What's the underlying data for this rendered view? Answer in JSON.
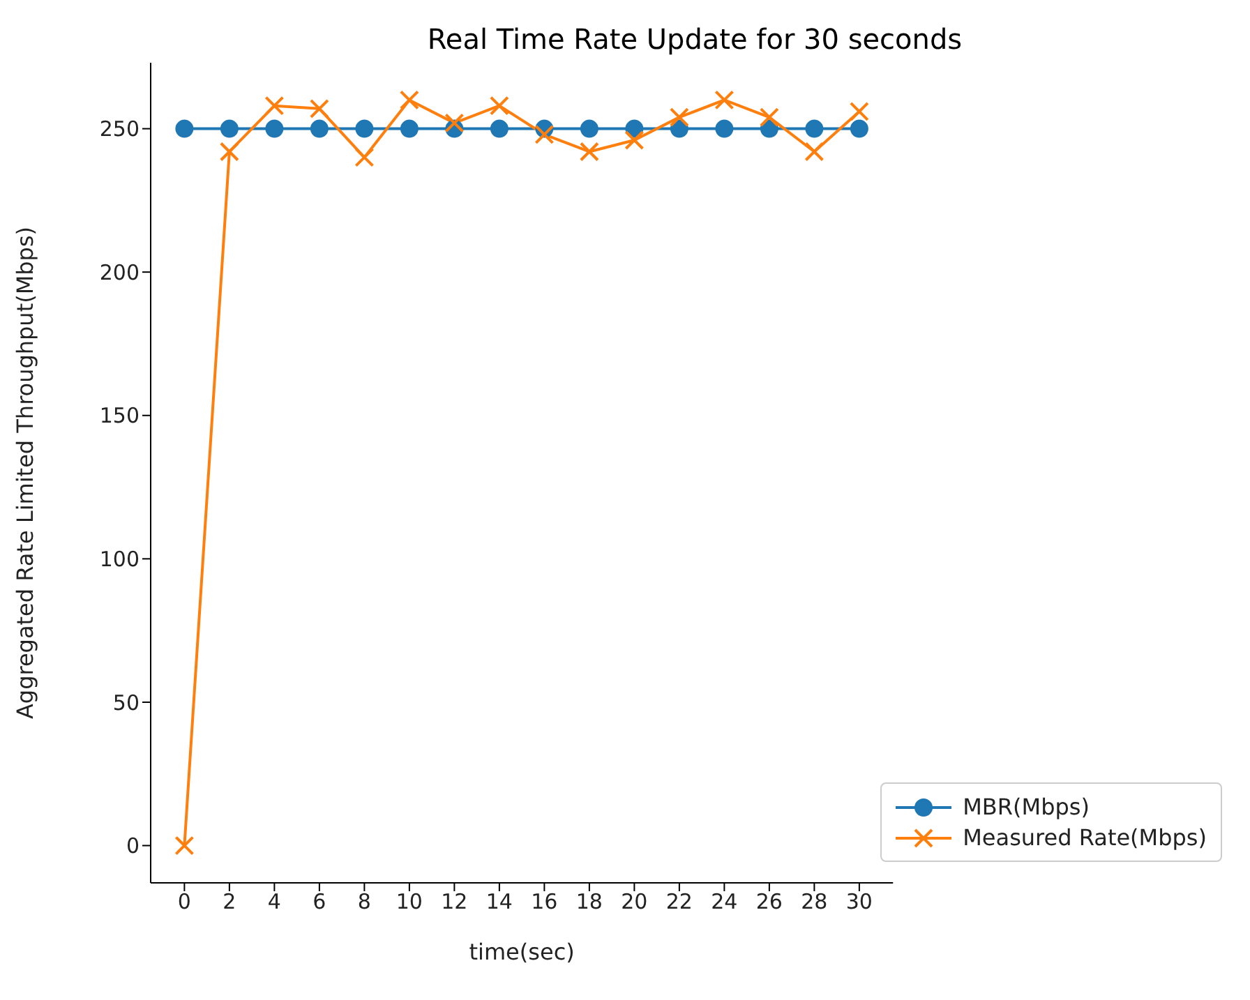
{
  "chart_data": {
    "type": "line",
    "title": "Real Time Rate Update for 30 seconds",
    "xlabel": "time(sec)",
    "ylabel": "Aggregated Rate Limited Throughput(Mbps)",
    "x": [
      0,
      2,
      4,
      6,
      8,
      10,
      12,
      14,
      16,
      18,
      20,
      22,
      24,
      26,
      28,
      30
    ],
    "series": [
      {
        "name": "MBR(Mbps)",
        "color": "#1f77b4",
        "marker": "circle",
        "values": [
          250,
          250,
          250,
          250,
          250,
          250,
          250,
          250,
          250,
          250,
          250,
          250,
          250,
          250,
          250,
          250
        ]
      },
      {
        "name": "Measured Rate(Mbps)",
        "color": "#ff7f0e",
        "marker": "cross",
        "values": [
          0,
          242,
          258,
          257,
          240,
          260,
          252,
          258,
          248,
          242,
          246,
          254,
          260,
          254,
          242,
          256
        ]
      }
    ],
    "xlim": [
      -1.5,
      31.5
    ],
    "xticks": [
      0,
      2,
      4,
      6,
      8,
      10,
      12,
      14,
      16,
      18,
      20,
      22,
      24,
      26,
      28,
      30
    ],
    "ylim": [
      -13,
      273
    ],
    "yticks": [
      0,
      50,
      100,
      150,
      200,
      250
    ],
    "grid": false,
    "legend": "bottom right"
  }
}
